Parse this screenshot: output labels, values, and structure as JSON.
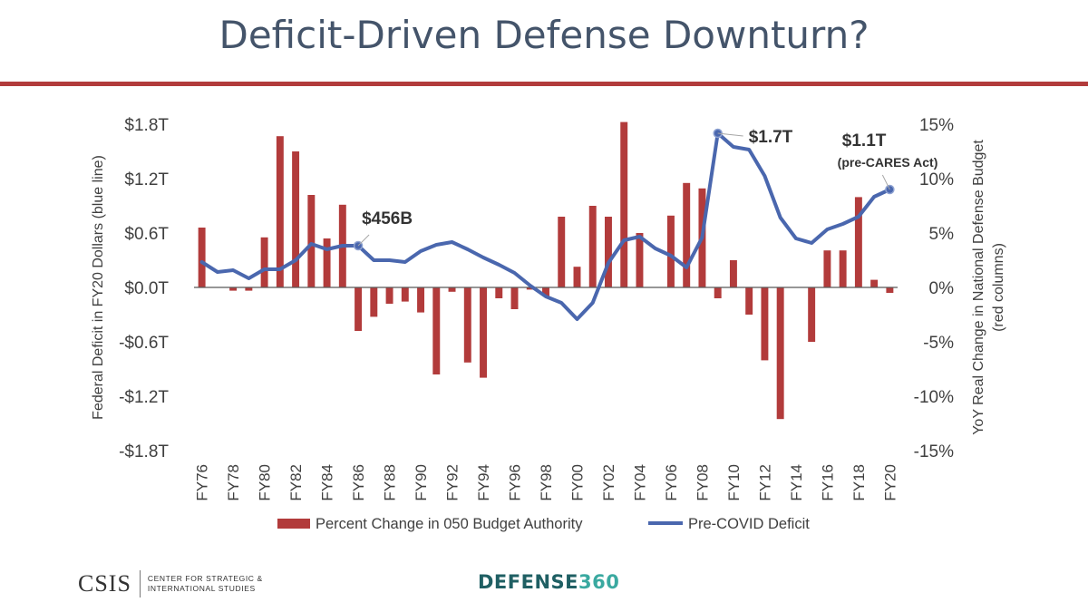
{
  "title": "Deficit-Driven Defense Downturn?",
  "colors": {
    "bar": "#b23b3b",
    "line": "#4a67ae",
    "title": "#44546a",
    "rule": "#b23b3b",
    "axis_text": "#404040",
    "brand_dark": "#1f5f63",
    "brand_light": "#3aa9a0"
  },
  "footer": {
    "csis_logo": "CSIS",
    "csis_subtitle": "CENTER FOR STRATEGIC &\nINTERNATIONAL STUDIES",
    "d360_part1": "DEFENSE",
    "d360_part2": "360"
  },
  "chart_data": {
    "type": "bar",
    "ylabel_left": "Federal Deficit in FY20 Dollars (blue line)",
    "ylabel_right": "YoY Real Change in National Defense Budget",
    "ylabel_right_sub": "(red columns)",
    "left_ticks": [
      "$1.8T",
      "$1.2T",
      "$0.6T",
      "$0.0T",
      "-$0.6T",
      "-$1.2T",
      "-$1.8T"
    ],
    "right_ticks": [
      "15%",
      "10%",
      "5%",
      "0%",
      "-5%",
      "-10%",
      "-15%"
    ],
    "ylim_left": [
      -1.8,
      1.8
    ],
    "ylim_right": [
      -15,
      15
    ],
    "grid": false,
    "legend_position": "bottom",
    "categories": [
      "FY76",
      "FY77",
      "FY78",
      "FY79",
      "FY80",
      "FY81",
      "FY82",
      "FY83",
      "FY84",
      "FY85",
      "FY86",
      "FY87",
      "FY88",
      "FY89",
      "FY90",
      "FY91",
      "FY92",
      "FY93",
      "FY94",
      "FY95",
      "FY96",
      "FY97",
      "FY98",
      "FY99",
      "FY00",
      "FY01",
      "FY02",
      "FY03",
      "FY04",
      "FY05",
      "FY06",
      "FY07",
      "FY08",
      "FY09",
      "FY10",
      "FY11",
      "FY12",
      "FY13",
      "FY14",
      "FY15",
      "FY16",
      "FY17",
      "FY18",
      "FY19",
      "FY20"
    ],
    "x_tick_labels": [
      "FY76",
      "",
      "FY78",
      "",
      "FY80",
      "",
      "FY82",
      "",
      "FY84",
      "",
      "FY86",
      "",
      "FY88",
      "",
      "FY90",
      "",
      "FY92",
      "",
      "FY94",
      "",
      "FY96",
      "",
      "FY98",
      "",
      "FY00",
      "",
      "FY02",
      "",
      "FY04",
      "",
      "FY06",
      "",
      "FY08",
      "",
      "FY10",
      "",
      "FY12",
      "",
      "FY14",
      "",
      "FY16",
      "",
      "FY18",
      "",
      "FY20"
    ],
    "series": [
      {
        "name": "Percent Change in 050 Budget Authority",
        "kind": "bar",
        "axis": "right",
        "values": [
          5.5,
          0,
          -0.3,
          -0.3,
          4.6,
          13.9,
          12.5,
          8.5,
          4.5,
          7.6,
          -4.0,
          -2.7,
          -1.5,
          -1.3,
          -2.3,
          -8.0,
          -0.4,
          -6.9,
          -8.3,
          -1.0,
          -2.0,
          -0.2,
          -0.8,
          6.5,
          1.9,
          7.5,
          6.5,
          15.2,
          5.0,
          0,
          6.6,
          9.6,
          9.1,
          -1.0,
          2.5,
          -2.5,
          -6.7,
          -12.1,
          0,
          -5.0,
          3.4,
          3.4,
          8.3,
          0.7,
          -0.5
        ]
      },
      {
        "name": "Pre-COVID Deficit",
        "kind": "line",
        "axis": "left",
        "values": [
          0.28,
          0.17,
          0.19,
          0.1,
          0.2,
          0.2,
          0.3,
          0.48,
          0.42,
          0.46,
          0.46,
          0.3,
          0.3,
          0.28,
          0.4,
          0.47,
          0.5,
          0.42,
          0.33,
          0.25,
          0.16,
          0.02,
          -0.1,
          -0.17,
          -0.35,
          -0.17,
          0.27,
          0.52,
          0.56,
          0.43,
          0.35,
          0.22,
          0.55,
          1.7,
          1.55,
          1.52,
          1.23,
          0.77,
          0.54,
          0.49,
          0.64,
          0.7,
          0.78,
          1.0,
          1.08
        ]
      }
    ],
    "annotations": [
      {
        "text": "$456B",
        "series": "Pre-COVID Deficit",
        "category": "FY86"
      },
      {
        "text": "$1.7T",
        "series": "Pre-COVID Deficit",
        "category": "FY09"
      },
      {
        "text": "$1.1T",
        "series": "Pre-COVID Deficit",
        "category": "FY20"
      },
      {
        "text": "(pre-CARES Act)",
        "series": "Pre-COVID Deficit",
        "category": "FY20"
      }
    ]
  }
}
